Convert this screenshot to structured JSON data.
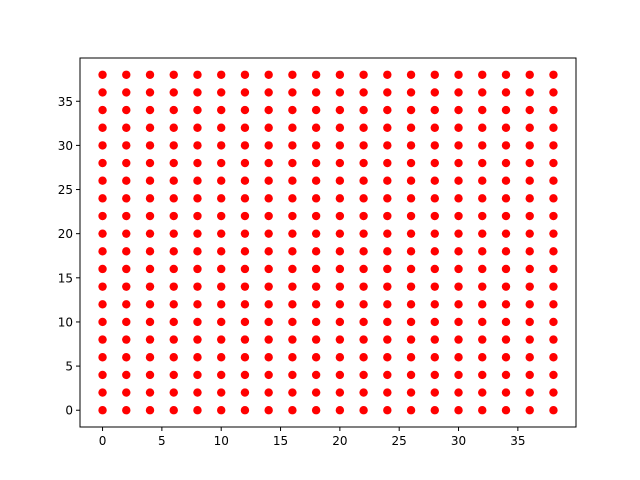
{
  "chart_data": {
    "type": "scatter",
    "title": "",
    "xlabel": "",
    "ylabel": "",
    "x_values": [
      0,
      2,
      4,
      6,
      8,
      10,
      12,
      14,
      16,
      18,
      20,
      22,
      24,
      26,
      28,
      30,
      32,
      34,
      36,
      38
    ],
    "y_values": [
      0,
      2,
      4,
      6,
      8,
      10,
      12,
      14,
      16,
      18,
      20,
      22,
      24,
      26,
      28,
      30,
      32,
      34,
      36,
      38
    ],
    "points_description_note": "",
    "xlim": [
      -1.9,
      39.9
    ],
    "ylim": [
      -1.9,
      39.9
    ],
    "xticks": [
      0,
      5,
      10,
      15,
      20,
      25,
      30,
      35
    ],
    "yticks": [
      0,
      5,
      10,
      15,
      20,
      25,
      30,
      35
    ],
    "marker_color": "#ff0000",
    "grid": false,
    "legend": "none"
  }
}
